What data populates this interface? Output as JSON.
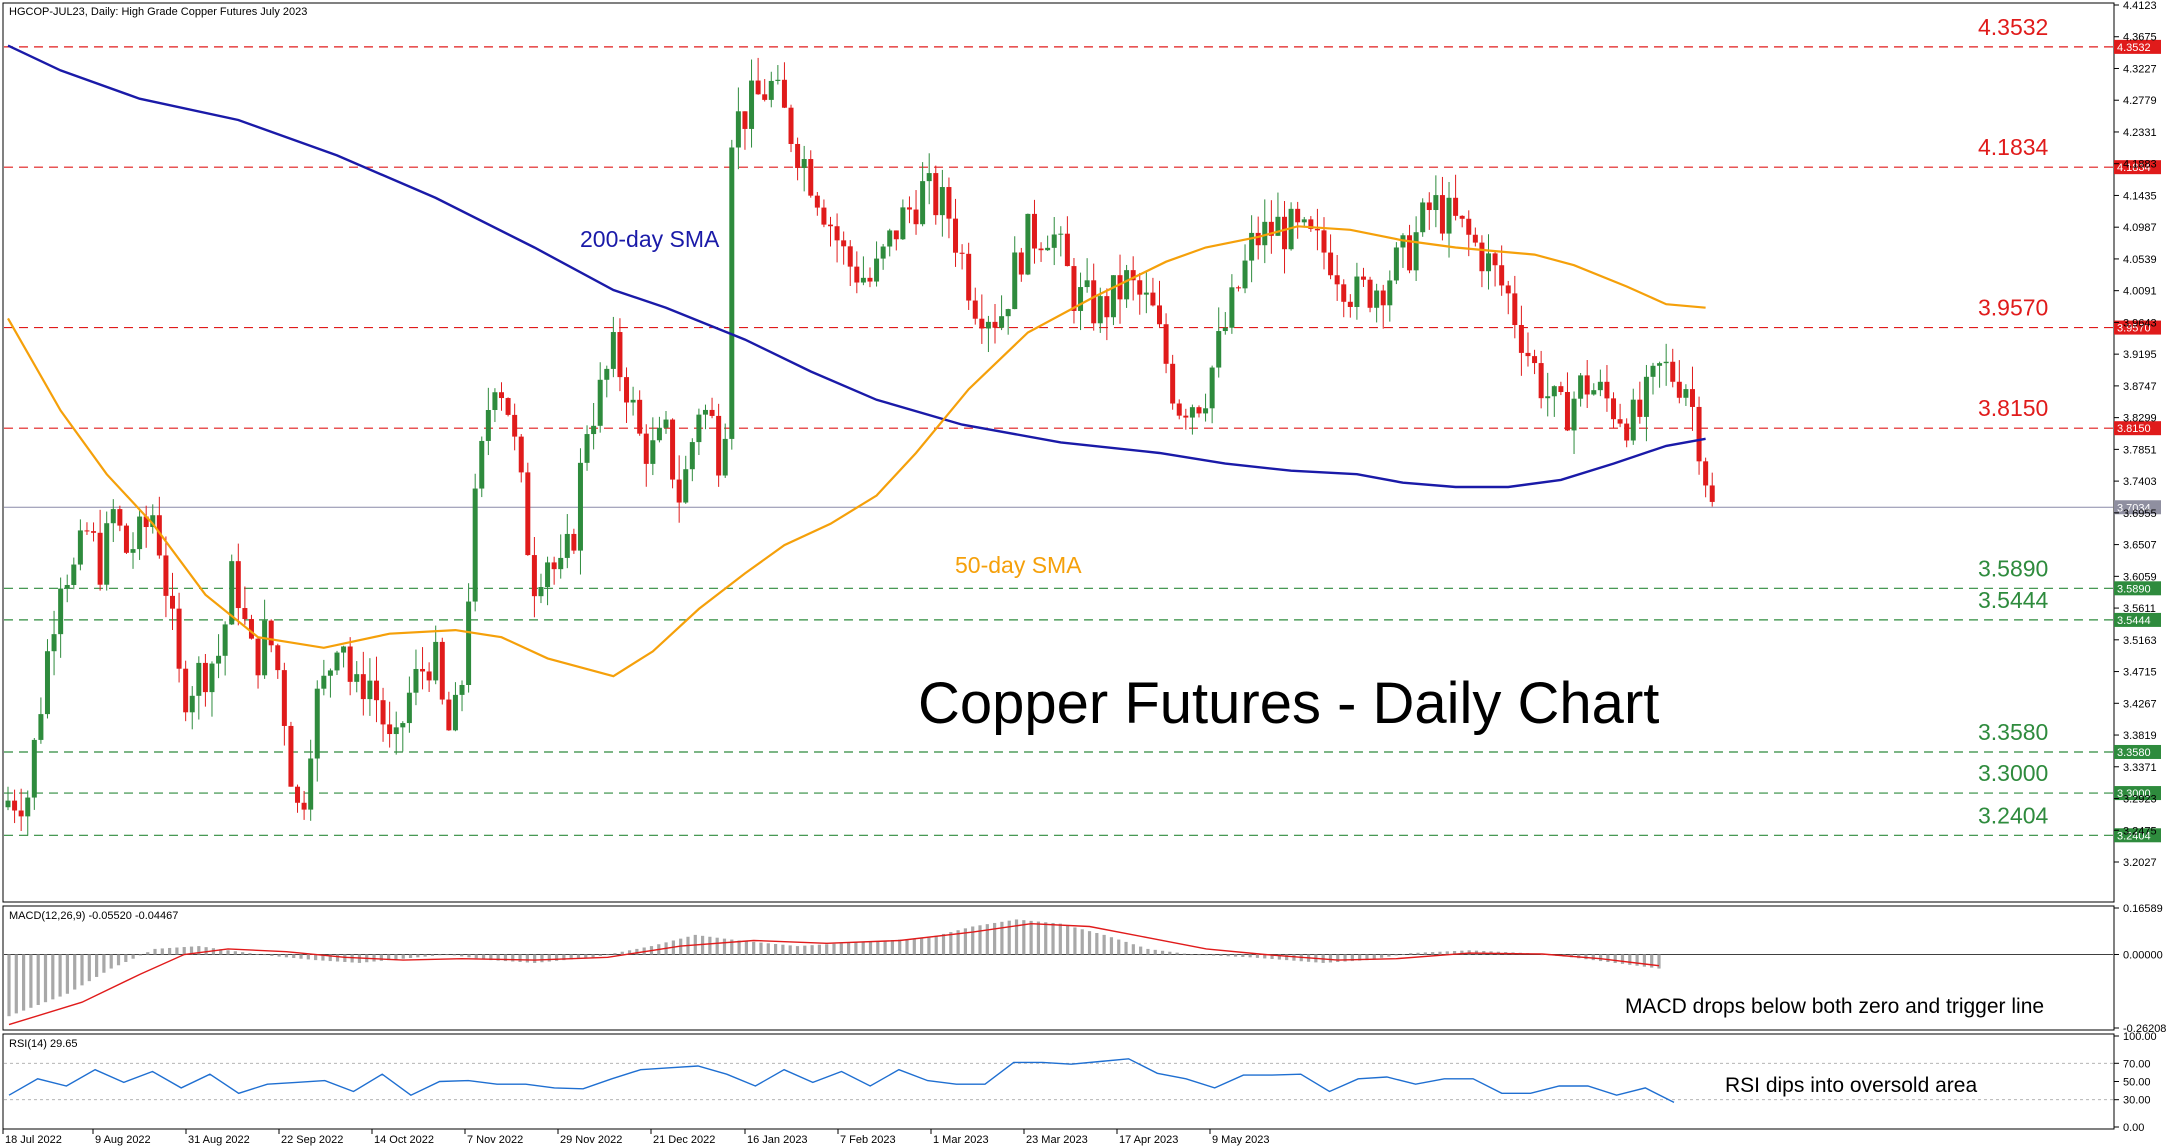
{
  "header": {
    "text": "HGCOP-JUL23, Daily:  High Grade Copper Futures July 2023"
  },
  "macd_header": "MACD(12,26,9) -0.05520 -0.04467",
  "rsi_header": "RSI(14) 29.65",
  "chart_title": "Copper Futures - Daily Chart",
  "colors": {
    "sma200": "#1a1aa8",
    "sma50": "#f5a00a",
    "bull": "#2e8b3d",
    "bear": "#e01b1b",
    "resistance": "#e01b1b",
    "support": "#2e8b3d",
    "macd_hist": "#a8a8a8",
    "macd_signal": "#e01b1b",
    "rsi": "#1f6fd1",
    "current_price": "#8a8aa8"
  },
  "chart_data": {
    "type": "candlestick",
    "title": "Copper Futures - Daily Chart",
    "price_axis": {
      "ylim": [
        3.14,
        4.4123
      ],
      "ticks": [
        "4.4123",
        "4.3675",
        "4.3227",
        "4.2779",
        "4.2331",
        "4.1883",
        "4.1435",
        "4.0987",
        "4.0539",
        "4.0091",
        "3.9643",
        "3.9195",
        "3.8747",
        "3.8299",
        "3.7851",
        "3.7403",
        "3.6955",
        "3.6507",
        "3.6059",
        "3.5611",
        "3.5163",
        "3.4715",
        "3.4267",
        "3.3819",
        "3.3371",
        "3.2923",
        "3.2475",
        "3.2027"
      ]
    },
    "x_axis_labels": [
      "18 Jul 2022",
      "9 Aug 2022",
      "31 Aug 2022",
      "22 Sep 2022",
      "14 Oct 2022",
      "7 Nov 2022",
      "29 Nov 2022",
      "21 Dec 2022",
      "16 Jan 2023",
      "7 Feb 2023",
      "1 Mar 2023",
      "23 Mar 2023",
      "17 Apr 2023",
      "9 May 2023"
    ],
    "resistance_levels": [
      {
        "value": 4.3532,
        "label": "4.3532"
      },
      {
        "value": 4.1834,
        "label": "4.1834"
      },
      {
        "value": 3.957,
        "label": "3.9570"
      },
      {
        "value": 3.815,
        "label": "3.8150"
      }
    ],
    "support_levels": [
      {
        "value": 3.589,
        "label": "3.5890"
      },
      {
        "value": 3.5444,
        "label": "3.5444"
      },
      {
        "value": 3.358,
        "label": "3.3580"
      },
      {
        "value": 3.3,
        "label": "3.3000"
      },
      {
        "value": 3.2404,
        "label": "3.2404"
      }
    ],
    "current_price": {
      "value": 3.7034,
      "label": "3.7034"
    },
    "annotations": {
      "sma200": "200-day SMA",
      "sma50": "50-day SMA",
      "macd": "MACD drops below both zero and trigger line",
      "rsi": "RSI dips into oversold area"
    },
    "sma200_points": [
      [
        0,
        4.355
      ],
      [
        8,
        4.32
      ],
      [
        20,
        4.28
      ],
      [
        35,
        4.25
      ],
      [
        50,
        4.2
      ],
      [
        65,
        4.14
      ],
      [
        80,
        4.07
      ],
      [
        92,
        4.01
      ],
      [
        100,
        3.985
      ],
      [
        112,
        3.94
      ],
      [
        122,
        3.895
      ],
      [
        132,
        3.855
      ],
      [
        145,
        3.82
      ],
      [
        160,
        3.795
      ],
      [
        175,
        3.78
      ],
      [
        185,
        3.765
      ],
      [
        195,
        3.755
      ],
      [
        205,
        3.75
      ],
      [
        212,
        3.738
      ],
      [
        220,
        3.732
      ],
      [
        228,
        3.732
      ],
      [
        236,
        3.742
      ],
      [
        244,
        3.765
      ],
      [
        252,
        3.79
      ],
      [
        258,
        3.8
      ]
    ],
    "sma50_points": [
      [
        0,
        3.97
      ],
      [
        8,
        3.84
      ],
      [
        15,
        3.75
      ],
      [
        22,
        3.68
      ],
      [
        30,
        3.58
      ],
      [
        38,
        3.52
      ],
      [
        48,
        3.505
      ],
      [
        58,
        3.525
      ],
      [
        68,
        3.53
      ],
      [
        75,
        3.52
      ],
      [
        82,
        3.49
      ],
      [
        92,
        3.465
      ],
      [
        98,
        3.5
      ],
      [
        105,
        3.56
      ],
      [
        112,
        3.61
      ],
      [
        118,
        3.65
      ],
      [
        125,
        3.68
      ],
      [
        132,
        3.72
      ],
      [
        138,
        3.78
      ],
      [
        146,
        3.87
      ],
      [
        155,
        3.95
      ],
      [
        165,
        4.0
      ],
      [
        176,
        4.05
      ],
      [
        182,
        4.07
      ],
      [
        190,
        4.085
      ],
      [
        196,
        4.1
      ],
      [
        204,
        4.095
      ],
      [
        212,
        4.08
      ],
      [
        220,
        4.07
      ],
      [
        226,
        4.065
      ],
      [
        232,
        4.06
      ],
      [
        238,
        4.045
      ],
      [
        246,
        4.015
      ],
      [
        252,
        3.99
      ],
      [
        258,
        3.985
      ]
    ],
    "candles_ohlc_by_phase": "rendered from keyed path through data range 3.24-4.36",
    "macd": {
      "ylim": [
        -0.26208,
        0.16589
      ],
      "ticks": [
        "0.16589",
        "0.00000",
        "-0.26208"
      ],
      "macd": -0.0552,
      "signal": -0.04467
    },
    "rsi": {
      "ylim": [
        0,
        100
      ],
      "ticks": [
        "100.00",
        "70.00",
        "50.00",
        "30.00",
        "0.00"
      ],
      "value": 29.65
    }
  }
}
